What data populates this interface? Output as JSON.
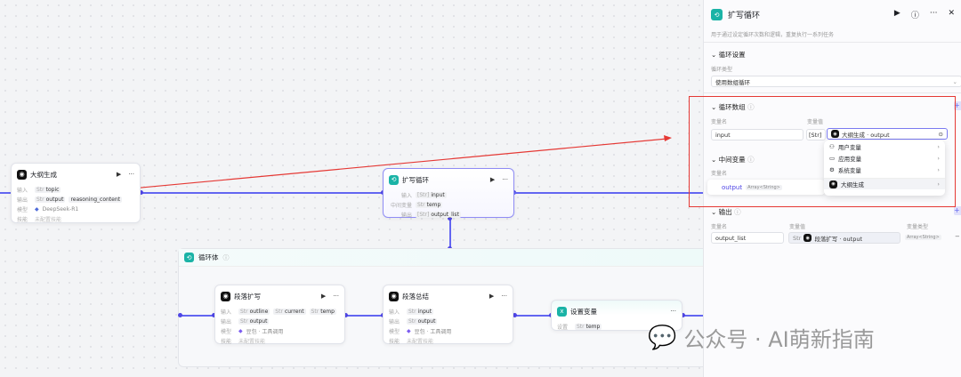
{
  "nodes": {
    "outline": {
      "title": "大纲生成",
      "in_label": "输入",
      "in": "topic",
      "out_label": "输出",
      "out": "output",
      "out2": "reasoning_content",
      "model_label": "模型",
      "model": "DeepSeek-R1",
      "skill_label": "技能",
      "skill": "未配置技能",
      "type": "Str"
    },
    "loop": {
      "title": "扩写循环",
      "in_label": "输入",
      "in": "input",
      "mid_label": "中间变量",
      "mid": "temp",
      "out_label": "输出",
      "out": "output_list",
      "t1": "[Str]",
      "t2": "Str",
      "t3": "[Str]"
    },
    "body": {
      "title": "循环体"
    },
    "expand": {
      "title": "段落扩写",
      "in_label": "输入",
      "in": [
        "outline",
        "current",
        "temp"
      ],
      "out_label": "输出",
      "out": "output",
      "model_label": "模型",
      "model": "豆包 · 工具调用",
      "skill_label": "技能",
      "skill": "未配置技能",
      "type": "Str"
    },
    "summary": {
      "title": "段落总结",
      "in_label": "输入",
      "in": "input",
      "out_label": "输出",
      "out": "output",
      "model_label": "模型",
      "model": "豆包 · 工具调用",
      "skill_label": "技能",
      "skill": "未配置技能",
      "type": "Str"
    },
    "setvar": {
      "title": "设置变量",
      "set_label": "设置",
      "var": "temp",
      "type": "Str"
    }
  },
  "panel": {
    "title": "扩写循环",
    "desc": "用于通过设定循环次数和逻辑，重复执行一系列任务",
    "loop_settings": "循环设置",
    "loop_type_label": "循环类型",
    "loop_type": "使用数组循环",
    "loop_array": "循环数组",
    "var_name": "变量名",
    "var_value": "变量值",
    "var_type": "变量类型",
    "array_name": "input",
    "array_type": "[Str]",
    "array_ref": "大纲生成 · output",
    "mid_vars": "中间变量",
    "mid_name": "output",
    "mid_type": "Array<String>",
    "output": "输出",
    "out_name": "output_list",
    "out_type_prefix": "Str",
    "out_ref": "段落扩写 · output",
    "out_type": "Array<String>",
    "menu": [
      "用户变量",
      "应用变量",
      "系统变量",
      "大纲生成"
    ]
  },
  "watermark": "公众号 · AI萌新指南",
  "colors": {
    "accent": "#6366f1",
    "highlight": "#e53935",
    "teal": "#1ab3a6"
  }
}
